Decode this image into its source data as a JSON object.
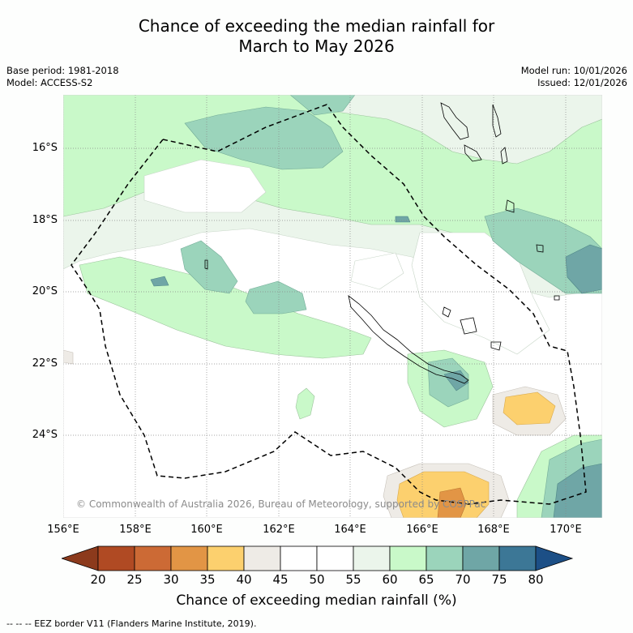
{
  "title": {
    "line1": "Chance of exceeding the median rainfall for",
    "line2": "March to May 2026"
  },
  "meta_left": {
    "base_period": "Base period: 1981-2018",
    "model": "Model: ACCESS-S2"
  },
  "meta_right": {
    "model_run": "Model run: 10/01/2026",
    "issued": "Issued: 12/01/2026"
  },
  "lat_labels": [
    "16°S",
    "18°S",
    "20°S",
    "22°S",
    "24°S"
  ],
  "lon_labels": [
    "156°E",
    "158°E",
    "160°E",
    "162°E",
    "164°E",
    "166°E",
    "168°E",
    "170°E"
  ],
  "copyright": "© Commonwealth of Australia 2026, Bureau of Meteorology, supported by COSPPac",
  "colorbar": {
    "ticks": [
      "20",
      "25",
      "30",
      "35",
      "40",
      "45",
      "50",
      "55",
      "60",
      "65",
      "70",
      "75",
      "80"
    ],
    "label": "Chance of exceeding median rainfall (%)",
    "colors": [
      "#8c3a1c",
      "#b04a23",
      "#cc6a35",
      "#e29545",
      "#fcd06e",
      "#eeebe6",
      "#ffffff",
      "#ffffff",
      "#ebf5eb",
      "#c9f9c9",
      "#9bd4bb",
      "#6fa6a6",
      "#3c7796",
      "#1c4f86"
    ]
  },
  "footer": "-- -- -- EEZ border V11 (Flanders Marine Institute, 2019)."
}
